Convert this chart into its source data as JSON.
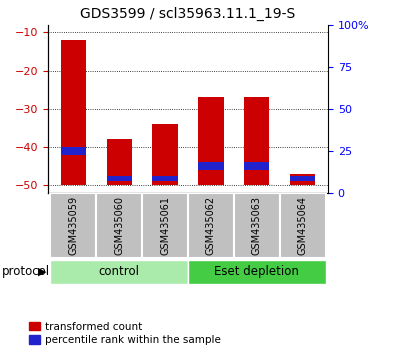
{
  "title": "GDS3599 / scl35963.11.1_19-S",
  "samples": [
    "GSM435059",
    "GSM435060",
    "GSM435061",
    "GSM435062",
    "GSM435063",
    "GSM435064"
  ],
  "red_tops": [
    -12,
    -38,
    -34,
    -27,
    -27,
    -47
  ],
  "blue_bottoms": [
    -42,
    -49,
    -49,
    -46,
    -46,
    -49
  ],
  "blue_heights": [
    2,
    1.5,
    1.5,
    2,
    2,
    1.5
  ],
  "ylim": [
    -52,
    -8
  ],
  "ylim_right": [
    0,
    100
  ],
  "yticks_left": [
    -50,
    -40,
    -30,
    -20,
    -10
  ],
  "yticks_right": [
    0,
    25,
    50,
    75,
    100
  ],
  "ytick_labels_right": [
    "0",
    "25",
    "50",
    "75",
    "100%"
  ],
  "bar_bottom": -50,
  "red_color": "#CC0000",
  "blue_color": "#2222CC",
  "background_label": "#C0C0C0",
  "control_color": "#AAEAAA",
  "eset_color": "#44CC44",
  "title_fontsize": 10,
  "tick_fontsize": 8,
  "bar_width": 0.55
}
